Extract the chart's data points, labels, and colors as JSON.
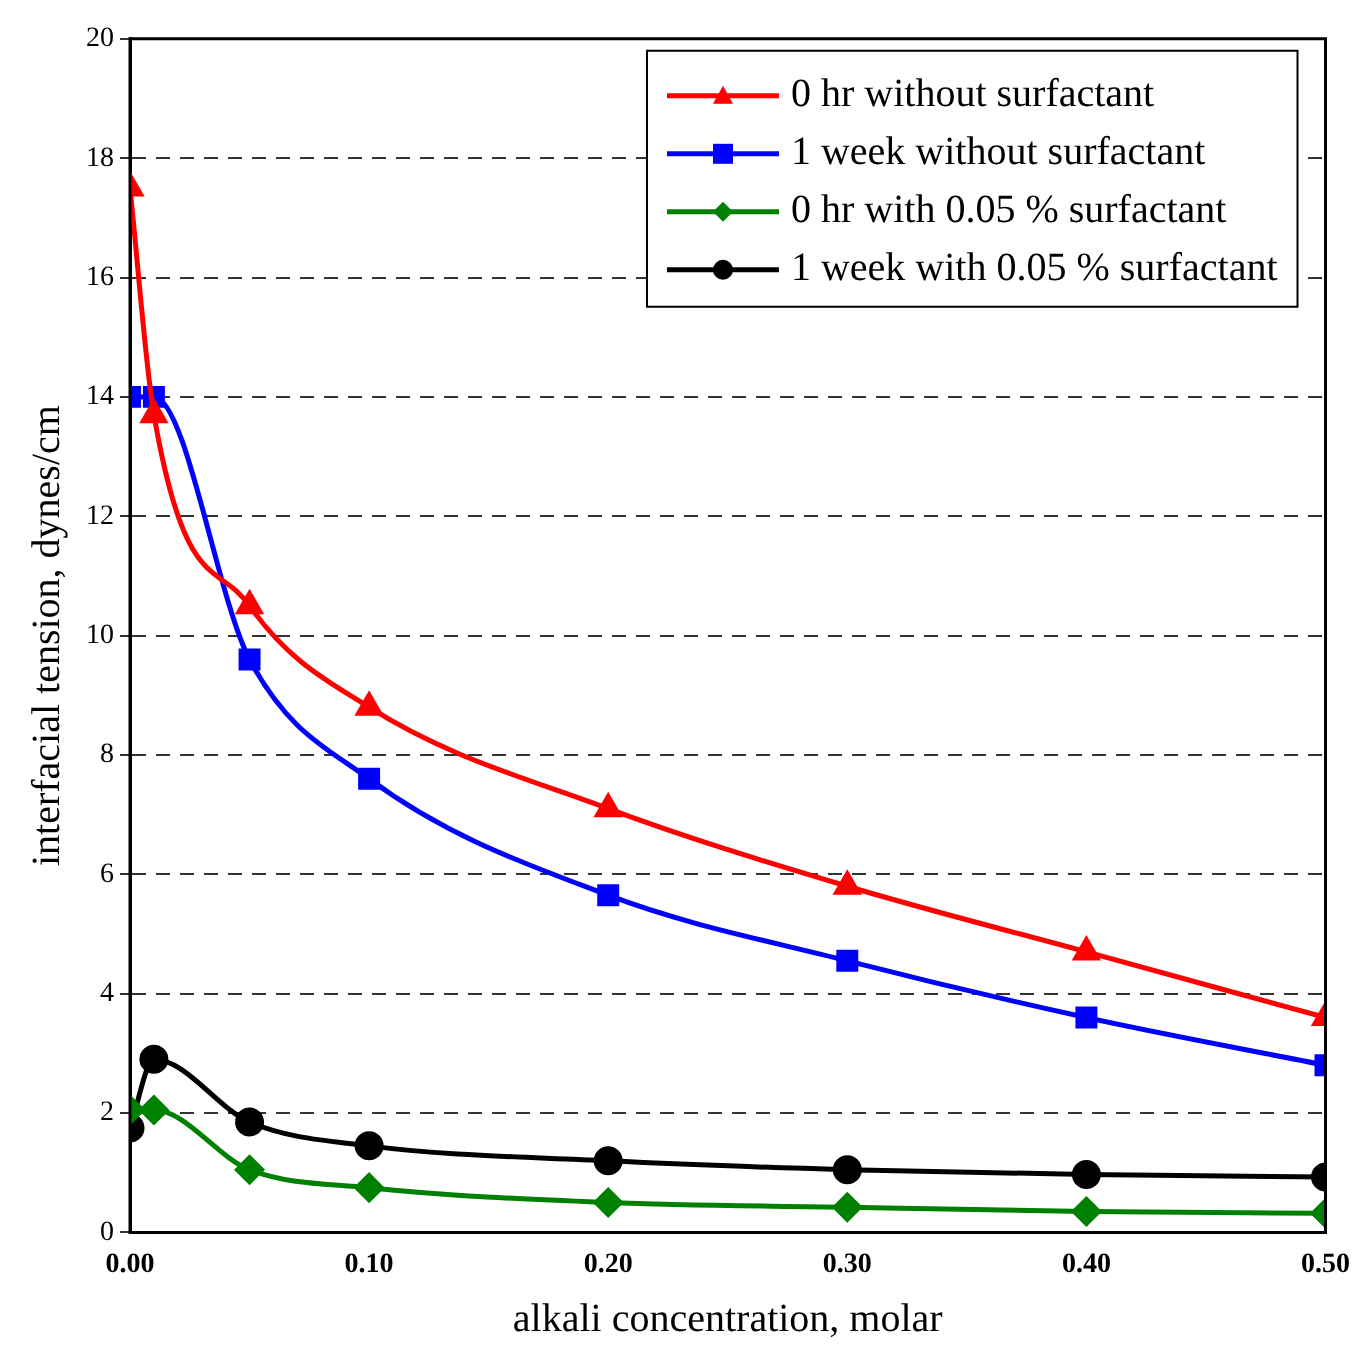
{
  "chart_data": {
    "type": "line",
    "xlabel": "alkali concentration, molar",
    "ylabel": "interfacial tension, dynes/cm",
    "x": [
      0,
      0.01,
      0.05,
      0.1,
      0.2,
      0.3,
      0.4,
      0.5
    ],
    "series": [
      {
        "name": "0 hr without surfactant",
        "color": "#ff0000",
        "marker": "triangle",
        "values": [
          17.5,
          13.7,
          10.5,
          8.8,
          7.1,
          5.8,
          4.7,
          3.6
        ]
      },
      {
        "name": "1 week without surfactant",
        "color": "#0000ff",
        "marker": "square",
        "values": [
          14,
          14,
          9.6,
          7.6,
          5.65,
          4.55,
          3.6,
          2.8
        ]
      },
      {
        "name": "0 hr with 0.05 % surfactant",
        "color": "#008000",
        "marker": "diamond",
        "values": [
          2.05,
          2.05,
          1.05,
          0.75,
          0.5,
          0.42,
          0.35,
          0.32
        ]
      },
      {
        "name": "1 week with 0.05 % surfactant",
        "color": "#000000",
        "marker": "circle",
        "values": [
          1.75,
          2.9,
          1.85,
          1.45,
          1.2,
          1.05,
          0.97,
          0.93
        ]
      }
    ],
    "xlim": [
      0,
      0.5
    ],
    "xticks": [
      {
        "value": 0,
        "label": "0.00"
      },
      {
        "value": 0.1,
        "label": "0.10"
      },
      {
        "value": 0.2,
        "label": "0.20"
      },
      {
        "value": 0.3,
        "label": "0.30"
      },
      {
        "value": 0.4,
        "label": "0.40"
      },
      {
        "value": 0.5,
        "label": "0.50"
      }
    ],
    "ylim": [
      0,
      20
    ],
    "yticks": [
      0,
      2,
      4,
      6,
      8,
      10,
      12,
      14,
      16,
      18,
      20
    ],
    "grid": "y",
    "legend": "top right",
    "line_style": "solid"
  }
}
